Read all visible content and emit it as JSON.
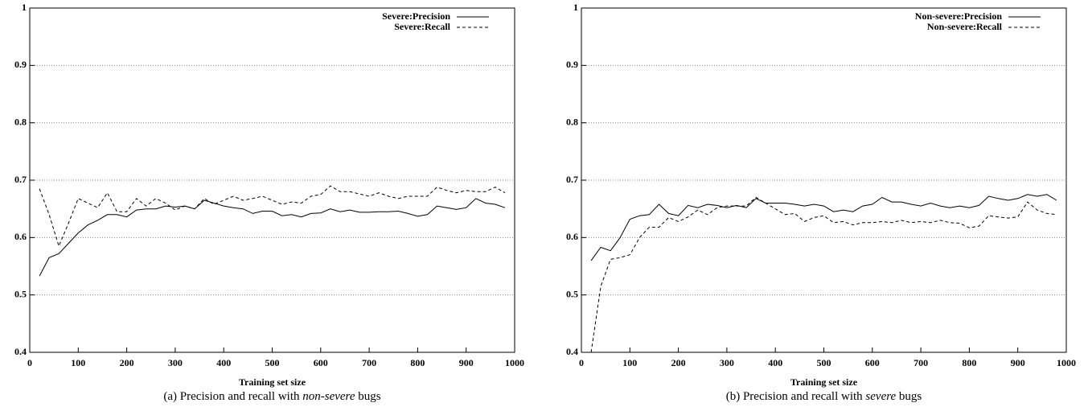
{
  "chart_data": [
    {
      "type": "line",
      "xlabel": "Training set size",
      "caption": "(a) Precision and recall with",
      "caption_emph": "non-severe",
      "caption_end": "bugs",
      "x": [
        20,
        40,
        60,
        80,
        100,
        120,
        140,
        160,
        180,
        200,
        220,
        240,
        260,
        280,
        300,
        320,
        340,
        360,
        380,
        400,
        420,
        440,
        460,
        480,
        500,
        520,
        540,
        560,
        580,
        600,
        620,
        640,
        660,
        680,
        700,
        720,
        740,
        760,
        780,
        800,
        820,
        840,
        860,
        880,
        900,
        920,
        940,
        960,
        980
      ],
      "series": [
        {
          "name": "Severe:Precision",
          "color": "#000000",
          "dash": false,
          "values": [
            0.533,
            0.565,
            0.572,
            0.59,
            0.608,
            0.622,
            0.63,
            0.64,
            0.64,
            0.636,
            0.648,
            0.65,
            0.65,
            0.655,
            0.653,
            0.655,
            0.65,
            0.665,
            0.66,
            0.655,
            0.652,
            0.65,
            0.642,
            0.646,
            0.646,
            0.638,
            0.64,
            0.636,
            0.642,
            0.643,
            0.65,
            0.645,
            0.648,
            0.644,
            0.644,
            0.645,
            0.645,
            0.646,
            0.642,
            0.637,
            0.64,
            0.655,
            0.652,
            0.649,
            0.652,
            0.668,
            0.66,
            0.658,
            0.652
          ]
        },
        {
          "name": "Severe:Recall",
          "color": "#000000",
          "dash": true,
          "values": [
            0.685,
            0.64,
            0.585,
            0.625,
            0.668,
            0.66,
            0.652,
            0.678,
            0.645,
            0.645,
            0.668,
            0.655,
            0.668,
            0.66,
            0.648,
            0.655,
            0.65,
            0.668,
            0.658,
            0.665,
            0.672,
            0.665,
            0.668,
            0.672,
            0.665,
            0.658,
            0.662,
            0.66,
            0.672,
            0.675,
            0.69,
            0.68,
            0.68,
            0.676,
            0.672,
            0.678,
            0.672,
            0.668,
            0.672,
            0.672,
            0.672,
            0.688,
            0.682,
            0.678,
            0.682,
            0.68,
            0.68,
            0.688,
            0.678
          ]
        }
      ],
      "xlim": [
        0,
        1000
      ],
      "xticks": [
        0,
        100,
        200,
        300,
        400,
        500,
        600,
        700,
        800,
        900,
        1000
      ],
      "ylim": [
        0.4,
        1
      ],
      "yticks": [
        0.4,
        0.5,
        0.6,
        0.7,
        0.8,
        0.9,
        1
      ],
      "grid": true,
      "legend": "top-right"
    },
    {
      "type": "line",
      "xlabel": "Training set size",
      "caption": "(b) Precision and recall with",
      "caption_emph": "severe",
      "caption_end": "bugs",
      "x": [
        20,
        40,
        60,
        80,
        100,
        120,
        140,
        160,
        180,
        200,
        220,
        240,
        260,
        280,
        300,
        320,
        340,
        360,
        380,
        400,
        420,
        440,
        460,
        480,
        500,
        520,
        540,
        560,
        580,
        600,
        620,
        640,
        660,
        680,
        700,
        720,
        740,
        760,
        780,
        800,
        820,
        840,
        860,
        880,
        900,
        920,
        940,
        960,
        980
      ],
      "series": [
        {
          "name": "Non-severe:Precision",
          "color": "#000000",
          "dash": false,
          "values": [
            0.56,
            0.583,
            0.577,
            0.6,
            0.632,
            0.638,
            0.64,
            0.658,
            0.642,
            0.638,
            0.656,
            0.652,
            0.658,
            0.656,
            0.652,
            0.656,
            0.652,
            0.668,
            0.66,
            0.66,
            0.66,
            0.658,
            0.655,
            0.658,
            0.655,
            0.645,
            0.648,
            0.645,
            0.655,
            0.658,
            0.67,
            0.662,
            0.662,
            0.658,
            0.655,
            0.66,
            0.655,
            0.652,
            0.655,
            0.652,
            0.656,
            0.672,
            0.668,
            0.665,
            0.668,
            0.675,
            0.672,
            0.675,
            0.665
          ]
        },
        {
          "name": "Non-severe:Recall",
          "color": "#000000",
          "dash": true,
          "values": [
            0.4,
            0.515,
            0.562,
            0.565,
            0.57,
            0.6,
            0.618,
            0.618,
            0.635,
            0.628,
            0.636,
            0.648,
            0.64,
            0.652,
            0.655,
            0.655,
            0.655,
            0.67,
            0.66,
            0.65,
            0.64,
            0.642,
            0.628,
            0.635,
            0.638,
            0.626,
            0.628,
            0.622,
            0.626,
            0.626,
            0.628,
            0.626,
            0.63,
            0.626,
            0.628,
            0.626,
            0.63,
            0.626,
            0.625,
            0.617,
            0.62,
            0.638,
            0.636,
            0.634,
            0.636,
            0.662,
            0.648,
            0.642,
            0.64
          ]
        }
      ],
      "xlim": [
        0,
        1000
      ],
      "xticks": [
        0,
        100,
        200,
        300,
        400,
        500,
        600,
        700,
        800,
        900,
        1000
      ],
      "ylim": [
        0.4,
        1
      ],
      "yticks": [
        0.4,
        0.5,
        0.6,
        0.7,
        0.8,
        0.9,
        1
      ],
      "grid": true,
      "legend": "top-right"
    }
  ]
}
